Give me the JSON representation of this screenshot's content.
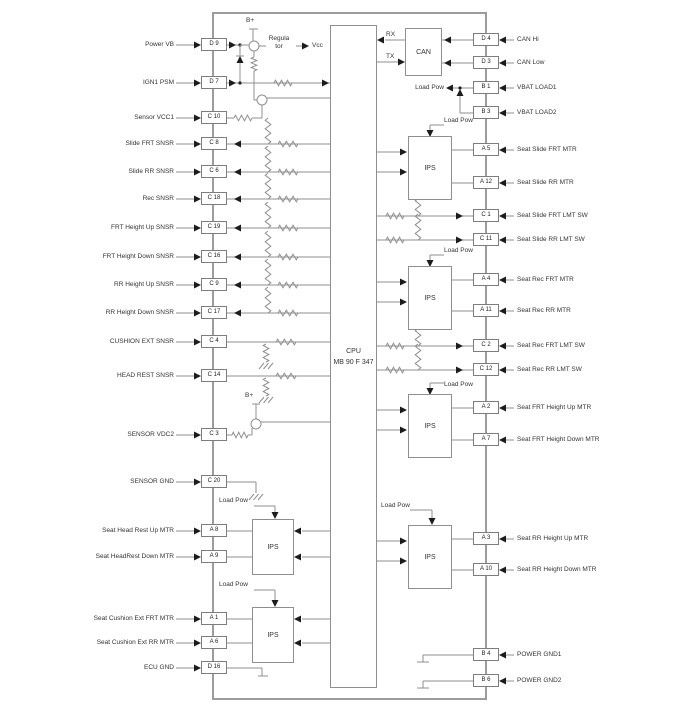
{
  "blocks": {
    "cpu": {
      "name": "CPU",
      "part": "MB 90 F 347"
    },
    "can": "CAN",
    "ips": "IPS"
  },
  "signals": {
    "rx": "RX",
    "tx": "TX",
    "vcc": "Vcc",
    "b_plus": "B+",
    "load_pow": "Load Pow",
    "regulator_line1": "Regula",
    "regulator_line2": "tor"
  },
  "left_pins": [
    {
      "label": "Power VB",
      "pin": "D 9"
    },
    {
      "label": "IGN1 PSM",
      "pin": "D 7"
    },
    {
      "label": "Sensor VCC1",
      "pin": "C 10"
    },
    {
      "label": "Slide FRT SNSR",
      "pin": "C 8"
    },
    {
      "label": "Slide RR SNSR",
      "pin": "C 6"
    },
    {
      "label": "Rec SNSR",
      "pin": "C 18"
    },
    {
      "label": "FRT Height Up SNSR",
      "pin": "C 19"
    },
    {
      "label": "FRT Height Down SNSR",
      "pin": "C 16"
    },
    {
      "label": "RR Height Up SNSR",
      "pin": "C 9"
    },
    {
      "label": "RR Height Down SNSR",
      "pin": "C 17"
    },
    {
      "label": "CUSHION EXT SNSR",
      "pin": "C 4"
    },
    {
      "label": "HEAD REST SNSR",
      "pin": "C 14"
    },
    {
      "label": "SENSOR VDC2",
      "pin": "C 3"
    },
    {
      "label": "SENSOR GND",
      "pin": "C 20"
    },
    {
      "label": "Seat Head Rest Up MTR",
      "pin": "A 8"
    },
    {
      "label": "Seat HeadRest Down MTR",
      "pin": "A 9"
    },
    {
      "label": "Seat Cushion Ext FRT MTR",
      "pin": "A 1"
    },
    {
      "label": "Seat Cushion Ext RR MTR",
      "pin": "A 6"
    },
    {
      "label": "ECU GND",
      "pin": "D 16"
    }
  ],
  "right_pins": [
    {
      "label": "CAN Hi",
      "pin": "D 4"
    },
    {
      "label": "CAN Low",
      "pin": "D 3"
    },
    {
      "label": "VBAT LOAD1",
      "pin": "B 1"
    },
    {
      "label": "VBAT LOAD2",
      "pin": "B 3"
    },
    {
      "label": "Seat Slide FRT MTR",
      "pin": "A 5"
    },
    {
      "label": "Seat Slide RR MTR",
      "pin": "A 12"
    },
    {
      "label": "Seat Slide FRT LMT SW",
      "pin": "C 1"
    },
    {
      "label": "Seat Slide RR LMT SW",
      "pin": "C 11"
    },
    {
      "label": "Seat Rec FRT MTR",
      "pin": "A 4"
    },
    {
      "label": "Seat Rec RR MTR",
      "pin": "A 11"
    },
    {
      "label": "Seat Rec FRT LMT SW",
      "pin": "C 2"
    },
    {
      "label": "Seat Rec RR LMT SW",
      "pin": "C 12"
    },
    {
      "label": "Seat FRT Height Up MTR",
      "pin": "A 2"
    },
    {
      "label": "Seat FRT Height Down MTR",
      "pin": "A 7"
    },
    {
      "label": "Seat RR Height Up MTR",
      "pin": "A 3"
    },
    {
      "label": "Seat RR Height Down MTR",
      "pin": "A 10"
    },
    {
      "label": "POWER GND1",
      "pin": "B 4"
    },
    {
      "label": "POWER GND2",
      "pin": "B 6"
    }
  ],
  "colors": {
    "wire": "#8f8f8f",
    "symbol": "#1c1c1c",
    "text": "#333333"
  }
}
